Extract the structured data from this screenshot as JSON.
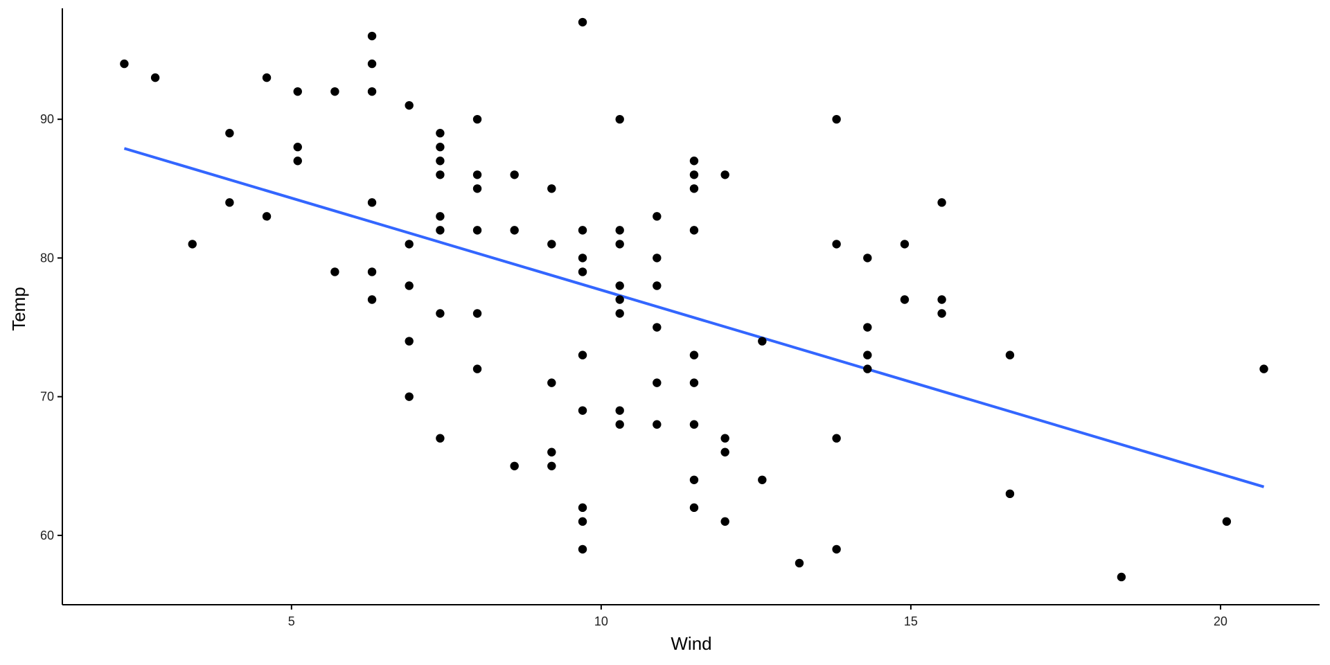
{
  "chart_data": {
    "type": "scatter",
    "xlabel": "Wind",
    "ylabel": "Temp",
    "xlim": [
      1.3,
      21.6
    ],
    "ylim": [
      55,
      98
    ],
    "x_ticks": [
      5,
      10,
      15,
      20
    ],
    "y_ticks": [
      60,
      70,
      80,
      90
    ],
    "grid": false,
    "legend": "none",
    "colors": {
      "points": "#000000",
      "fit_line": "#3366FF",
      "axis": "#000000"
    },
    "series": [
      {
        "values": [
          [
            2.3,
            94
          ],
          [
            2.8,
            93
          ],
          [
            3.4,
            81
          ],
          [
            4.0,
            89
          ],
          [
            4.0,
            84
          ],
          [
            4.6,
            93
          ],
          [
            4.6,
            83
          ],
          [
            5.1,
            92
          ],
          [
            5.1,
            88
          ],
          [
            5.1,
            87
          ],
          [
            5.7,
            92
          ],
          [
            5.7,
            79
          ],
          [
            6.3,
            96
          ],
          [
            6.3,
            94
          ],
          [
            6.3,
            92
          ],
          [
            6.3,
            84
          ],
          [
            6.3,
            79
          ],
          [
            6.3,
            77
          ],
          [
            6.9,
            91
          ],
          [
            6.9,
            81
          ],
          [
            6.9,
            78
          ],
          [
            6.9,
            74
          ],
          [
            6.9,
            70
          ],
          [
            7.4,
            89
          ],
          [
            7.4,
            88
          ],
          [
            7.4,
            87
          ],
          [
            7.4,
            86
          ],
          [
            7.4,
            83
          ],
          [
            7.4,
            82
          ],
          [
            7.4,
            76
          ],
          [
            7.4,
            67
          ],
          [
            8.0,
            90
          ],
          [
            8.0,
            86
          ],
          [
            8.0,
            85
          ],
          [
            8.0,
            82
          ],
          [
            8.0,
            76
          ],
          [
            8.0,
            72
          ],
          [
            8.6,
            86
          ],
          [
            8.6,
            82
          ],
          [
            8.6,
            65
          ],
          [
            9.2,
            85
          ],
          [
            9.2,
            81
          ],
          [
            9.2,
            71
          ],
          [
            9.2,
            66
          ],
          [
            9.2,
            65
          ],
          [
            9.7,
            97
          ],
          [
            9.7,
            82
          ],
          [
            9.7,
            80
          ],
          [
            9.7,
            79
          ],
          [
            9.7,
            73
          ],
          [
            9.7,
            69
          ],
          [
            9.7,
            62
          ],
          [
            9.7,
            61
          ],
          [
            9.7,
            59
          ],
          [
            10.3,
            90
          ],
          [
            10.3,
            82
          ],
          [
            10.3,
            81
          ],
          [
            10.3,
            78
          ],
          [
            10.3,
            77
          ],
          [
            10.3,
            76
          ],
          [
            10.3,
            69
          ],
          [
            10.3,
            68
          ],
          [
            10.9,
            83
          ],
          [
            10.9,
            80
          ],
          [
            10.9,
            78
          ],
          [
            10.9,
            75
          ],
          [
            10.9,
            71
          ],
          [
            10.9,
            68
          ],
          [
            11.5,
            87
          ],
          [
            11.5,
            86
          ],
          [
            11.5,
            85
          ],
          [
            11.5,
            82
          ],
          [
            11.5,
            73
          ],
          [
            11.5,
            71
          ],
          [
            11.5,
            68
          ],
          [
            11.5,
            64
          ],
          [
            11.5,
            62
          ],
          [
            12.0,
            86
          ],
          [
            12.0,
            67
          ],
          [
            12.0,
            66
          ],
          [
            12.0,
            61
          ],
          [
            12.6,
            74
          ],
          [
            12.6,
            64
          ],
          [
            13.2,
            58
          ],
          [
            13.8,
            90
          ],
          [
            13.8,
            81
          ],
          [
            13.8,
            67
          ],
          [
            13.8,
            59
          ],
          [
            14.3,
            80
          ],
          [
            14.3,
            75
          ],
          [
            14.3,
            73
          ],
          [
            14.3,
            72
          ],
          [
            14.9,
            81
          ],
          [
            14.9,
            77
          ],
          [
            15.5,
            84
          ],
          [
            15.5,
            77
          ],
          [
            15.5,
            76
          ],
          [
            16.6,
            73
          ],
          [
            16.6,
            63
          ],
          [
            18.4,
            57
          ],
          [
            20.1,
            61
          ],
          [
            20.7,
            72
          ]
        ]
      }
    ],
    "fit_line": {
      "x": [
        2.3,
        20.7
      ],
      "y": [
        87.9,
        63.5
      ]
    }
  }
}
